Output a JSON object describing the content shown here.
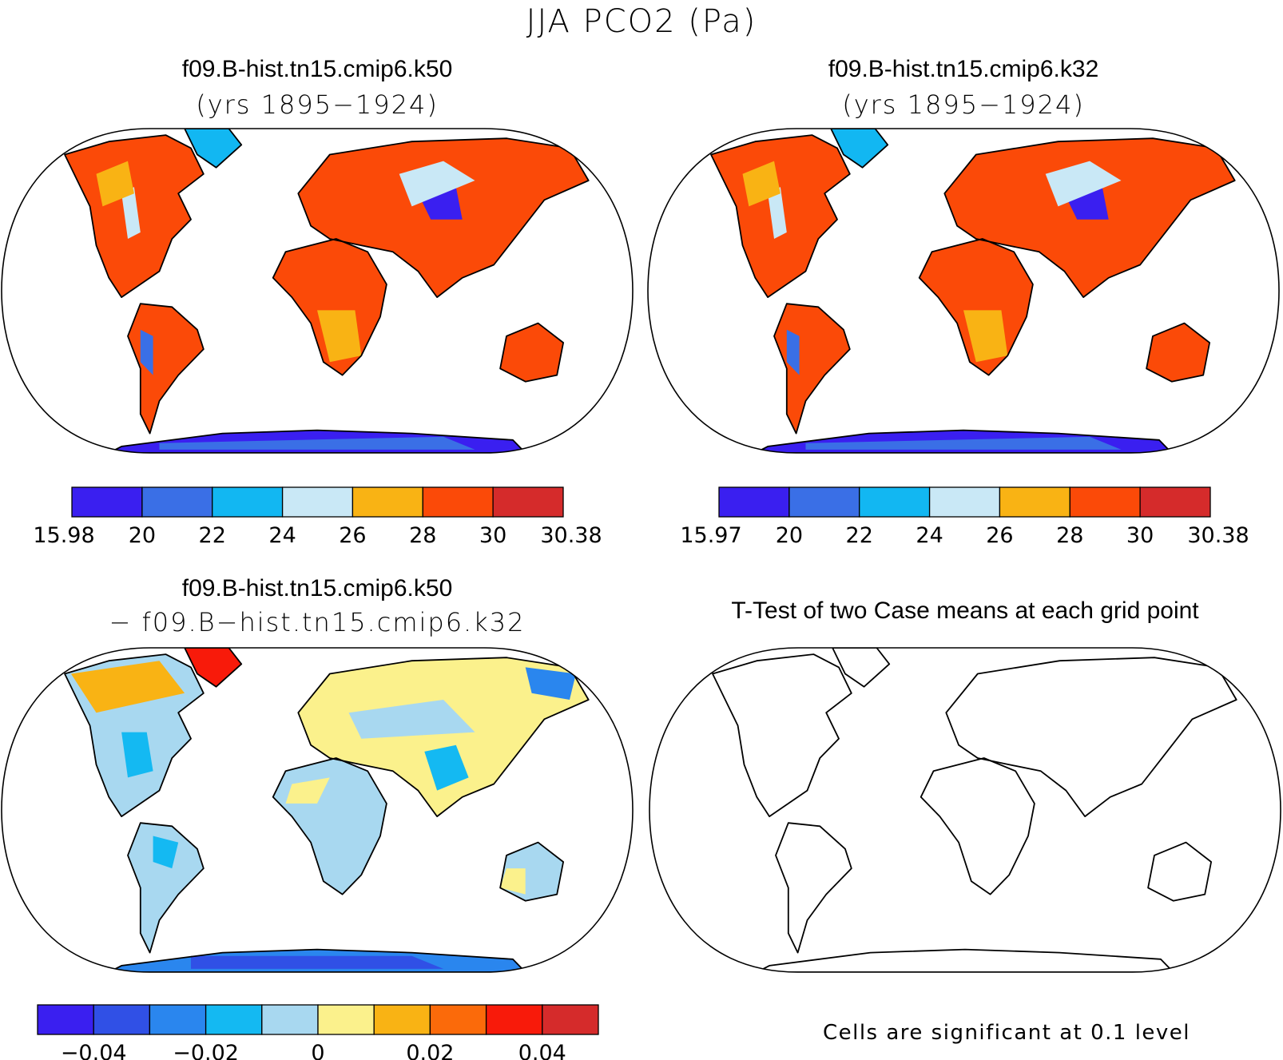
{
  "figure": {
    "title": "JJA PCO2 (Pa)",
    "colors": {
      "abs": [
        "#3a1ff0",
        "#3a6fe6",
        "#12b7f2",
        "#c9e8f6",
        "#f9b314",
        "#fb4a08",
        "#d52b2b"
      ],
      "diff": [
        "#3a1ff0",
        "#3050e6",
        "#2a86ee",
        "#14b9f2",
        "#a8d8f0",
        "#fbf18c",
        "#f9b314",
        "#fb6a0a",
        "#f81a0a",
        "#d52b2b"
      ]
    },
    "panels": [
      {
        "id": "case1",
        "title": "f09.B-hist.tn15.cmip6.k50",
        "subtitle": "(yrs 1895−1924)",
        "colorbar": {
          "labels": [
            "15.98",
            "20",
            "22",
            "24",
            "26",
            "28",
            "30",
            "30.38"
          ]
        }
      },
      {
        "id": "case2",
        "title": "f09.B-hist.tn15.cmip6.k32",
        "subtitle": "(yrs 1895−1924)",
        "colorbar": {
          "labels": [
            "15.97",
            "20",
            "22",
            "24",
            "26",
            "28",
            "30",
            "30.38"
          ]
        }
      },
      {
        "id": "difference",
        "title": "f09.B-hist.tn15.cmip6.k50",
        "subtitle": "− f09.B−hist.tn15.cmip6.k32",
        "colorbar": {
          "labels": [
            "−0.04",
            "−0.02",
            "0",
            "0.02",
            "0.04"
          ]
        }
      },
      {
        "id": "ttest",
        "title": "T-Test of two Case means at each grid point",
        "note": "Cells are significant at 0.1 level"
      }
    ]
  }
}
